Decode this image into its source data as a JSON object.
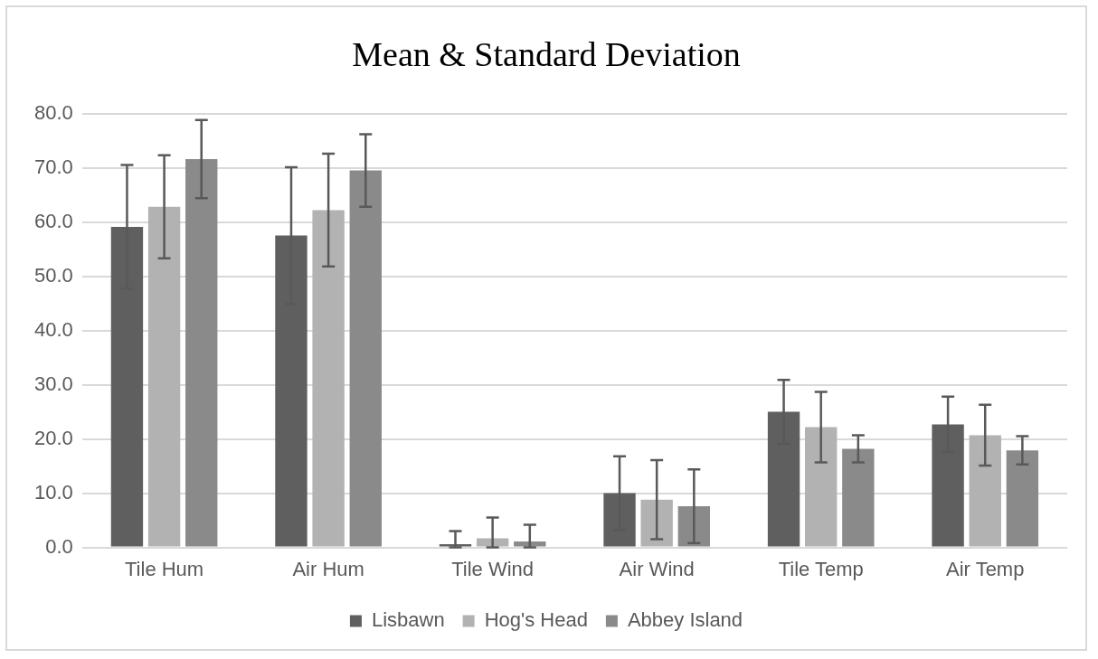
{
  "chart_data": {
    "type": "bar",
    "title": "Mean & Standard Deviation",
    "categories": [
      "Tile Hum",
      "Air Hum",
      "Tile Wind",
      "Air Wind",
      "Tile Temp",
      "Air Temp"
    ],
    "series": [
      {
        "name": "Lisbawn",
        "color": "#5f5f5f",
        "values": [
          59.1,
          57.5,
          0.6,
          10.0,
          25.0,
          22.7
        ],
        "errors": [
          11.4,
          12.6,
          [
            0,
            3.0
          ],
          6.8,
          5.9,
          5.1
        ]
      },
      {
        "name": "Hog's Head",
        "color": "#b2b2b2",
        "values": [
          62.8,
          62.2,
          1.7,
          8.8,
          22.2,
          20.7
        ],
        "errors": [
          9.5,
          10.4,
          [
            0,
            5.5
          ],
          7.3,
          6.5,
          5.6
        ]
      },
      {
        "name": "Abbey Island",
        "color": "#8a8a8a",
        "values": [
          71.6,
          69.5,
          1.1,
          7.6,
          18.2,
          17.9
        ],
        "errors": [
          7.2,
          6.7,
          [
            0,
            4.2
          ],
          6.8,
          2.5,
          2.6
        ]
      }
    ],
    "ylim": [
      0,
      80
    ],
    "yticks": [
      {
        "value": 0,
        "label": "0.0"
      },
      {
        "value": 10,
        "label": "10.0"
      },
      {
        "value": 20,
        "label": "20.0"
      },
      {
        "value": 30,
        "label": "30.0"
      },
      {
        "value": 40,
        "label": "40.0"
      },
      {
        "value": 50,
        "label": "50.0"
      },
      {
        "value": 60,
        "label": "60.0"
      },
      {
        "value": 70,
        "label": "70.0"
      },
      {
        "value": 80,
        "label": "80.0"
      }
    ],
    "grid": "y",
    "legend": "bottom"
  }
}
